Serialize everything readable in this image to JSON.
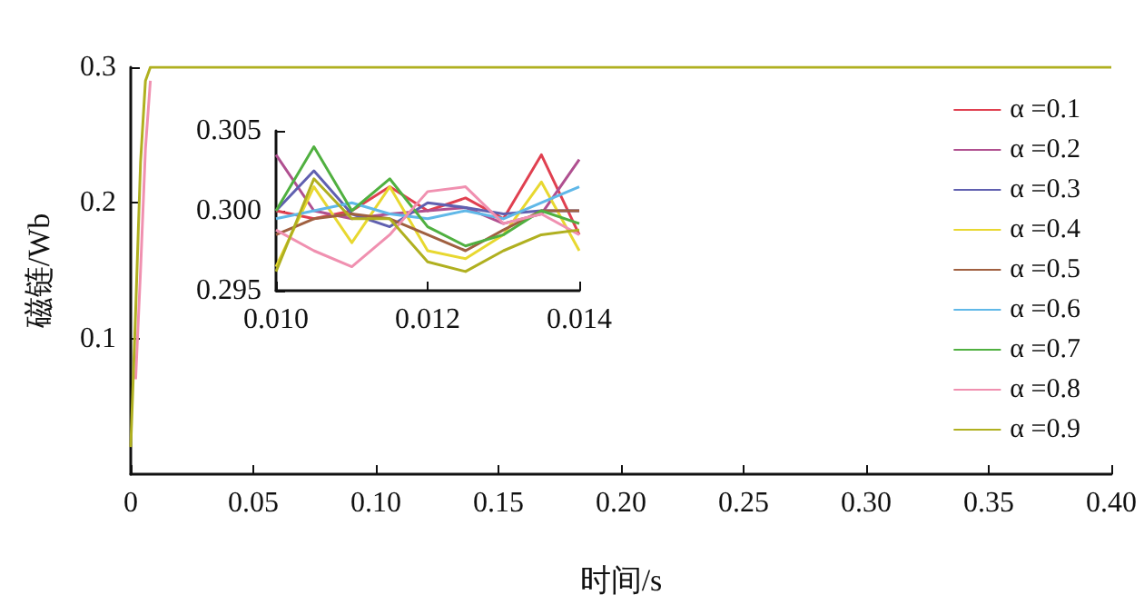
{
  "chart_data": [
    {
      "type": "line",
      "xlabel": "时间/s",
      "ylabel": "磁链/Wb",
      "xlim": [
        0,
        0.4
      ],
      "ylim": [
        0,
        0.3
      ],
      "xticks": [
        {
          "value": 0,
          "label": "0"
        },
        0.05,
        {
          "value": 0.1,
          "label": "0.10"
        },
        0.15,
        {
          "value": 0.2,
          "label": "0.20"
        },
        0.25,
        {
          "value": 0.3,
          "label": "0.30"
        },
        0.35,
        {
          "value": 0.4,
          "label": "0.40"
        }
      ],
      "yticks": [
        0.1,
        0.2,
        0.3
      ],
      "legend": "right",
      "x": [
        0,
        0.002,
        0.004,
        0.006,
        0.008,
        0.01,
        0.05,
        0.1,
        0.15,
        0.2,
        0.25,
        0.3,
        0.35,
        0.4
      ],
      "series": [
        {
          "name": "α =0.1",
          "color": "#e04050",
          "values": [
            null,
            null,
            null,
            null,
            null,
            null,
            null,
            null,
            null,
            null,
            null,
            null,
            null,
            null
          ]
        },
        {
          "name": "α =0.2",
          "color": "#b05090",
          "values": [
            null,
            null,
            null,
            null,
            null,
            null,
            null,
            null,
            null,
            null,
            null,
            null,
            null,
            null
          ]
        },
        {
          "name": "α =0.3",
          "color": "#6060b0",
          "values": [
            null,
            null,
            null,
            null,
            null,
            null,
            null,
            null,
            null,
            null,
            null,
            null,
            null,
            null
          ]
        },
        {
          "name": "α =0.4",
          "color": "#e8d830",
          "values": [
            null,
            null,
            null,
            null,
            null,
            null,
            null,
            null,
            null,
            null,
            null,
            null,
            null,
            null
          ]
        },
        {
          "name": "α =0.5",
          "color": "#a06040",
          "values": [
            null,
            null,
            null,
            null,
            null,
            null,
            null,
            null,
            null,
            null,
            null,
            null,
            null,
            null
          ]
        },
        {
          "name": "α =0.6",
          "color": "#60b8e8",
          "values": [
            null,
            null,
            null,
            null,
            null,
            null,
            null,
            null,
            null,
            null,
            null,
            null,
            null,
            null
          ]
        },
        {
          "name": "α =0.7",
          "color": "#50b040",
          "values": [
            null,
            null,
            null,
            null,
            null,
            null,
            null,
            null,
            null,
            null,
            null,
            null,
            null,
            null
          ]
        },
        {
          "name": "α =0.8",
          "color": "#f090b0",
          "values": [
            null,
            0.07,
            0.15,
            0.24,
            0.29,
            null,
            null,
            null,
            null,
            null,
            null,
            null,
            null,
            null
          ]
        },
        {
          "name": "α =0.9",
          "color": "#b0b020",
          "values": [
            0.02,
            0.12,
            0.23,
            0.29,
            0.3,
            0.3,
            0.3,
            0.3,
            0.3,
            0.3,
            0.3,
            0.3,
            0.3,
            0.3
          ]
        }
      ]
    },
    {
      "type": "line",
      "xlim": [
        0.01,
        0.014
      ],
      "ylim": [
        0.295,
        0.305
      ],
      "xticks": [
        {
          "value": 0.01,
          "label": "0.010"
        },
        0.012,
        0.014
      ],
      "yticks": [
        0.295,
        {
          "value": 0.3,
          "label": "0.300"
        },
        0.305
      ],
      "x": [
        0.01,
        0.0105,
        0.011,
        0.0115,
        0.012,
        0.0125,
        0.013,
        0.0135,
        0.014
      ],
      "series": [
        {
          "color": "#e04050",
          "values": [
            0.3,
            0.2995,
            0.3,
            0.3015,
            0.3,
            0.3008,
            0.2995,
            0.3035,
            0.2985
          ]
        },
        {
          "color": "#b05090",
          "values": [
            0.3035,
            0.3,
            0.2995,
            0.2998,
            0.3,
            0.3002,
            0.2992,
            0.2998,
            0.3032
          ]
        },
        {
          "color": "#6060b0",
          "values": [
            0.3,
            0.3025,
            0.2998,
            0.299,
            0.3005,
            0.3002,
            0.2998,
            0.3,
            0.3
          ]
        },
        {
          "color": "#e8d830",
          "values": [
            0.2965,
            0.3015,
            0.298,
            0.3015,
            0.2975,
            0.297,
            0.2985,
            0.3018,
            0.2975
          ]
        },
        {
          "color": "#a06040",
          "values": [
            0.2985,
            0.2995,
            0.2998,
            0.2995,
            0.2985,
            0.2975,
            0.2988,
            0.3,
            0.3
          ]
        },
        {
          "color": "#60b8e8",
          "values": [
            0.2995,
            0.3,
            0.3005,
            0.2998,
            0.2995,
            0.3,
            0.2995,
            0.3005,
            0.3015
          ]
        },
        {
          "color": "#50b040",
          "values": [
            0.3,
            0.304,
            0.3,
            0.302,
            0.299,
            0.2978,
            0.2985,
            0.3,
            0.2992
          ]
        },
        {
          "color": "#f090b0",
          "values": [
            0.2988,
            0.2975,
            0.2965,
            0.2985,
            0.3012,
            0.3015,
            0.2992,
            0.2998,
            0.2985
          ]
        },
        {
          "color": "#b0b020",
          "values": [
            0.2962,
            0.302,
            0.2995,
            0.2995,
            0.2968,
            0.2962,
            0.2975,
            0.2985,
            0.2988
          ]
        }
      ]
    }
  ]
}
